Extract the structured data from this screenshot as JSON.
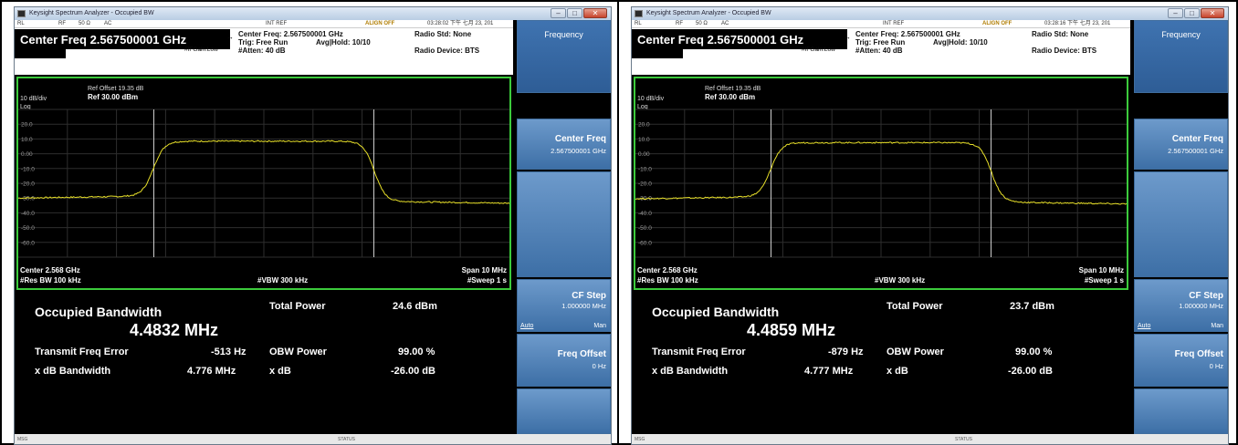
{
  "instruments": [
    {
      "title": "Keysight Spectrum Analyzer - Occupied BW",
      "status": {
        "rl": "RL",
        "rf": "RF",
        "ohm": "50 Ω",
        "ac": "AC",
        "int_ref": "INT REF",
        "align": "ALIGN OFF",
        "timestamp": "03:28:02 下午 七月 23, 201"
      },
      "center_freq_title": "Center Freq 2.567500001 GHz",
      "if_gain": "#IFGain:Low",
      "setup": {
        "center": "Center Freq: 2.567500001 GHz",
        "trig": "Trig: Free Run",
        "avg": "Avg|Hold: 10/10",
        "atten": "#Atten: 40 dB",
        "radio_std": "Radio Std: None",
        "radio_device": "Radio Device: BTS"
      },
      "graph": {
        "ref_offset": "Ref Offset 19.35 dB",
        "div": "10 dB/div",
        "ref": "Ref 30.00 dBm",
        "scale": "Log",
        "y_ticks": [
          "20.0",
          "10.0",
          "0.00",
          "-10.0",
          "-20.0",
          "-30.0",
          "-40.0",
          "-50.0",
          "-60.0"
        ],
        "center": "Center  2.568 GHz",
        "span": "Span 10 MHz",
        "res_bw": "#Res BW  100 kHz",
        "vbw": "#VBW  300 kHz",
        "sweep": "#Sweep  1 s"
      },
      "results": {
        "occupied_bw_label": "Occupied Bandwidth",
        "occupied_bw_value": "4.4832 MHz",
        "total_power_label": "Total Power",
        "total_power_value": "24.6 dBm",
        "tfe_label": "Transmit Freq Error",
        "tfe_value": "-513 Hz",
        "obw_power_label": "OBW Power",
        "obw_power_value": "99.00 %",
        "xdb_bw_label": "x dB Bandwidth",
        "xdb_bw_value": "4.776 MHz",
        "xdb_label": "x dB",
        "xdb_value": "-26.00 dB"
      },
      "softkeys": {
        "menu": "Frequency",
        "center_freq_label": "Center Freq",
        "center_freq_value": "2.567500001 GHz",
        "cf_step_label": "CF Step",
        "cf_step_value": "1.000000 MHz",
        "auto": "Auto",
        "man": "Man",
        "freq_offset_label": "Freq Offset",
        "freq_offset_value": "0 Hz"
      },
      "bottom": {
        "msg": "MSG",
        "status": "STATUS"
      },
      "trace": {
        "type": "spectrum",
        "x_range_mhz": [
          -5,
          5
        ],
        "y_range_dbm": [
          -70,
          30
        ],
        "floor_left_dbm": -30,
        "floor_right_dbm": -31,
        "plateau_dbm": 8.5,
        "edge_left_mhz": -2.25,
        "edge_right_mhz": 2.25,
        "marker_left_mhz": -2.24,
        "marker_right_mhz": 2.24
      }
    },
    {
      "title": "Keysight Spectrum Analyzer - Occupied BW",
      "status": {
        "rl": "RL",
        "rf": "RF",
        "ohm": "50 Ω",
        "ac": "AC",
        "int_ref": "INT REF",
        "align": "ALIGN OFF",
        "timestamp": "03:28:16 下午 七月 23, 201"
      },
      "center_freq_title": "Center Freq 2.567500001 GHz",
      "if_gain": "#IFGain:Low",
      "setup": {
        "center": "Center Freq: 2.567500001 GHz",
        "trig": "Trig: Free Run",
        "avg": "Avg|Hold: 10/10",
        "atten": "#Atten: 40 dB",
        "radio_std": "Radio Std: None",
        "radio_device": "Radio Device: BTS"
      },
      "graph": {
        "ref_offset": "Ref Offset 19.35 dB",
        "div": "10 dB/div",
        "ref": "Ref 30.00 dBm",
        "scale": "Log",
        "y_ticks": [
          "20.0",
          "10.0",
          "0.00",
          "-10.0",
          "-20.0",
          "-30.0",
          "-40.0",
          "-50.0",
          "-60.0"
        ],
        "center": "Center  2.568 GHz",
        "span": "Span 10 MHz",
        "res_bw": "#Res BW  100 kHz",
        "vbw": "#VBW  300 kHz",
        "sweep": "#Sweep  1 s"
      },
      "results": {
        "occupied_bw_label": "Occupied Bandwidth",
        "occupied_bw_value": "4.4859 MHz",
        "total_power_label": "Total Power",
        "total_power_value": "23.7 dBm",
        "tfe_label": "Transmit Freq Error",
        "tfe_value": "-879 Hz",
        "obw_power_label": "OBW Power",
        "obw_power_value": "99.00 %",
        "xdb_bw_label": "x dB Bandwidth",
        "xdb_bw_value": "4.777 MHz",
        "xdb_label": "x dB",
        "xdb_value": "-26.00 dB"
      },
      "softkeys": {
        "menu": "Frequency",
        "center_freq_label": "Center Freq",
        "center_freq_value": "2.567500001 GHz",
        "cf_step_label": "CF Step",
        "cf_step_value": "1.000000 MHz",
        "auto": "Auto",
        "man": "Man",
        "freq_offset_label": "Freq Offset",
        "freq_offset_value": "0 Hz"
      },
      "bottom": {
        "msg": "MSG",
        "status": "STATUS"
      },
      "trace": {
        "type": "spectrum",
        "x_range_mhz": [
          -5,
          5
        ],
        "y_range_dbm": [
          -70,
          30
        ],
        "floor_left_dbm": -30.5,
        "floor_right_dbm": -31.5,
        "plateau_dbm": 7.5,
        "edge_left_mhz": -2.25,
        "edge_right_mhz": 2.25,
        "marker_left_mhz": -2.24,
        "marker_right_mhz": 2.24
      }
    }
  ],
  "colors": {
    "trace": "#e8e02a",
    "graph_border": "#3ccb3c",
    "softkey": "#4a7eb8",
    "marker_line": "#cfcfcf"
  }
}
